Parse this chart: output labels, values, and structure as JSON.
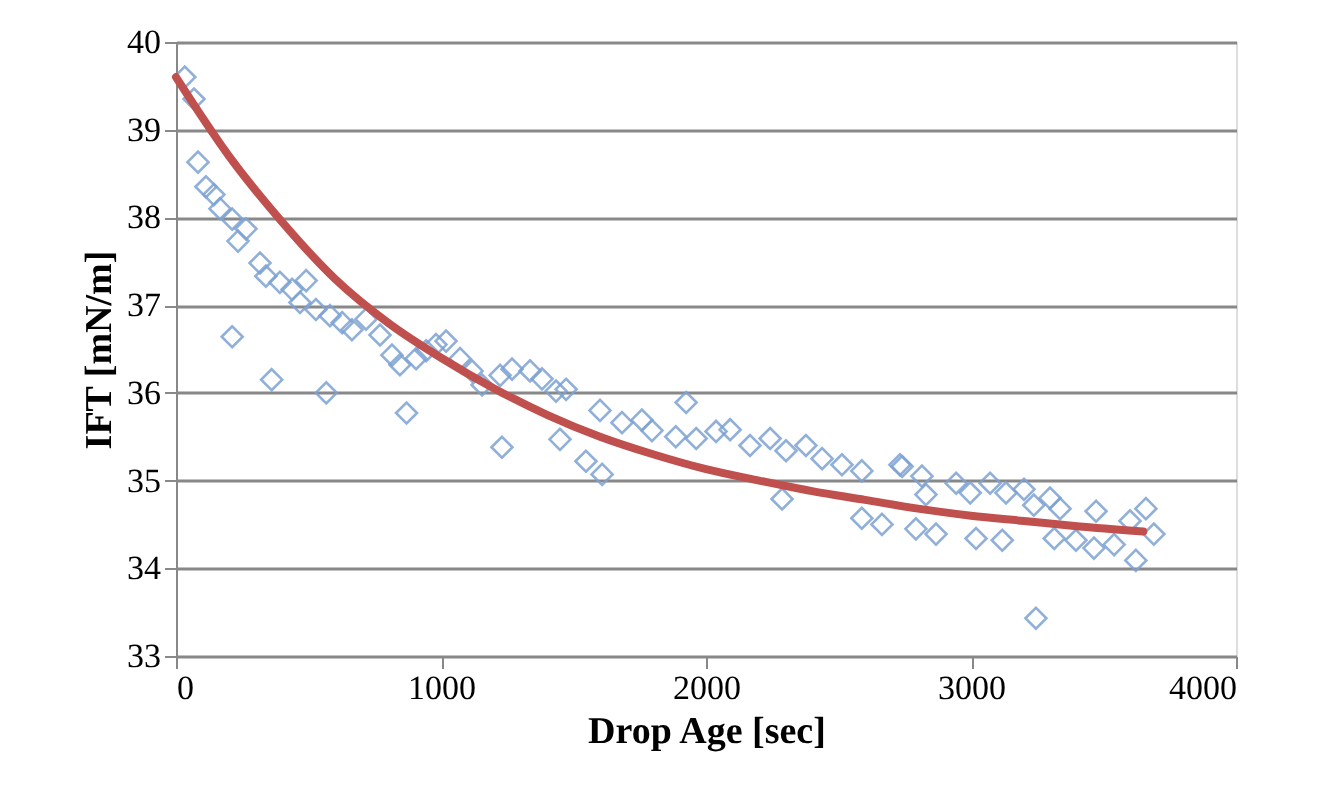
{
  "chart_data": {
    "type": "scatter",
    "xlabel": "Drop Age [sec]",
    "ylabel": "IFT [mN/m]",
    "xlim": [
      0,
      4000
    ],
    "xticks": [
      0,
      {
        "value": 1000,
        "label": "1000"
      },
      {
        "value": 2000,
        "label": "2000"
      },
      {
        "value": 3000,
        "label": "3000"
      },
      {
        "value": 4000,
        "label": "4000"
      }
    ],
    "ylim": [
      33,
      40
    ],
    "yticks": [
      33,
      34,
      35,
      36,
      37,
      38,
      39,
      40
    ],
    "grid": "y",
    "legend": false,
    "series": [
      {
        "type": "scatter",
        "marker": "diamond",
        "color": "#7da2d3",
        "x": [
          33,
          68,
          83,
          113,
          143,
          166,
          212,
          264,
          234,
          317,
          339,
          392,
          438,
          491,
          468,
          528,
          581,
          627,
          664,
          717,
          770,
          815,
          845,
          906,
          944,
          981,
          1019,
          1072,
          1117,
          1155,
          1223,
          1268,
          1336,
          1381,
          1434,
          212,
          361,
          567,
          870,
          1230,
          1472,
          1449,
          1547,
          1608,
          1600,
          1683,
          1758,
          1796,
          1886,
          1925,
          1963,
          2038,
          2091,
          2166,
          2242,
          2302,
          2287,
          2377,
          2438,
          2513,
          2588,
          2588,
          2664,
          2732,
          2830,
          2740,
          2815,
          2792,
          2868,
          2944,
          2997,
          3019,
          3072,
          3132,
          3118,
          3200,
          3237,
          3298,
          3336,
          3314,
          3396,
          3472,
          3464,
          3540,
          3600,
          3660,
          3690,
          3622,
          3245
        ],
        "values": [
          39.6,
          39.35,
          38.63,
          38.35,
          38.26,
          38.1,
          37.98,
          37.87,
          37.73,
          37.48,
          37.33,
          37.26,
          37.18,
          37.28,
          37.03,
          36.95,
          36.88,
          36.8,
          36.72,
          36.84,
          36.66,
          36.43,
          36.32,
          36.39,
          36.48,
          36.55,
          36.59,
          36.39,
          36.25,
          36.09,
          36.2,
          36.27,
          36.25,
          36.16,
          36.02,
          36.64,
          36.15,
          36.0,
          35.77,
          35.38,
          36.04,
          35.47,
          35.22,
          35.07,
          35.8,
          35.66,
          35.69,
          35.57,
          35.5,
          35.89,
          35.48,
          35.56,
          35.58,
          35.4,
          35.48,
          35.34,
          34.79,
          35.4,
          35.25,
          35.18,
          35.11,
          34.57,
          34.5,
          35.18,
          34.84,
          35.16,
          35.05,
          34.45,
          34.39,
          34.97,
          34.86,
          34.34,
          34.97,
          34.86,
          34.32,
          34.9,
          34.72,
          34.8,
          34.68,
          34.34,
          34.32,
          34.65,
          34.23,
          34.27,
          34.54,
          34.68,
          34.39,
          34.09,
          33.43
        ]
      },
      {
        "type": "line",
        "color": "#c0504d",
        "line_style": "solid",
        "x": [
          0,
          200,
          400,
          600,
          800,
          1000,
          1200,
          1400,
          1600,
          1800,
          2000,
          2200,
          2400,
          2600,
          2800,
          3000,
          3200,
          3400,
          3650
        ],
        "values": [
          39.6,
          38.7,
          37.95,
          37.3,
          36.8,
          36.4,
          36.05,
          35.75,
          35.5,
          35.3,
          35.13,
          35.0,
          34.88,
          34.78,
          34.68,
          34.6,
          34.54,
          34.48,
          34.42
        ]
      }
    ]
  }
}
